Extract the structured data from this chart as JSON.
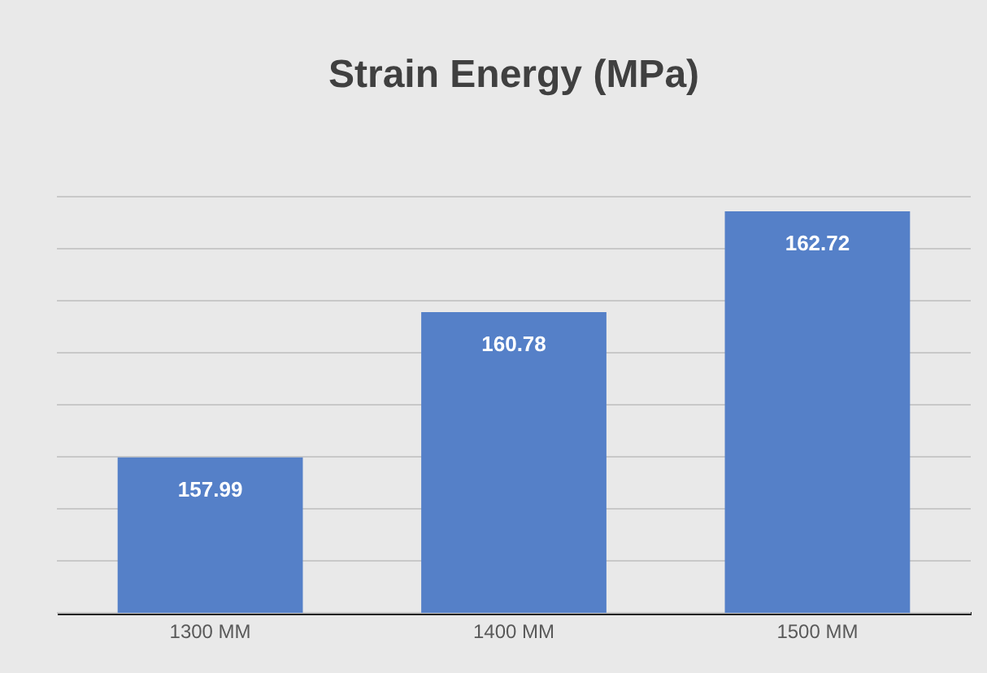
{
  "chart_data": {
    "type": "bar",
    "title": "Strain Energy (MPa)",
    "categories": [
      "1300 MM",
      "1400 MM",
      "1500 MM"
    ],
    "values": [
      157.99,
      160.78,
      162.72
    ],
    "color": "#5580c8",
    "ylim": [
      155,
      163
    ],
    "yticks": [
      {
        "value": 155,
        "label": null
      },
      {
        "value": 156,
        "label": null
      },
      {
        "value": 157,
        "label": null
      },
      {
        "value": 158,
        "label": null
      },
      {
        "value": 159,
        "label": null
      },
      {
        "value": 160,
        "label": null
      },
      {
        "value": 161,
        "label": null
      },
      {
        "value": 162,
        "label": null
      },
      {
        "value": 163,
        "label": null
      }
    ],
    "grid": "y",
    "data_labels": true,
    "tick_labels": "x"
  }
}
